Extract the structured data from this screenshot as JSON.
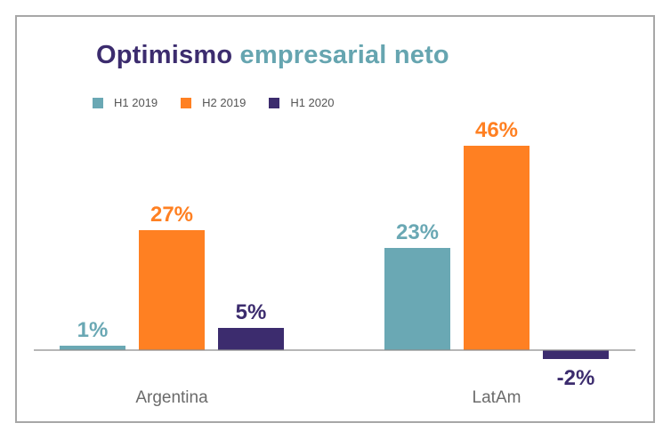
{
  "chart_data": {
    "type": "bar",
    "title": "Optimismo empresarial neto",
    "title_part1": "Optimismo",
    "title_part2": "empresarial neto",
    "xlabel": "",
    "ylabel": "",
    "categories": [
      "Argentina",
      "LatAm"
    ],
    "series": [
      {
        "name": "H1 2019",
        "color": "#6aa8b4",
        "values": [
          1,
          23
        ],
        "labels": [
          "1%",
          "23%"
        ]
      },
      {
        "name": "H2 2019",
        "color": "#ff8022",
        "values": [
          27,
          46
        ],
        "labels": [
          "27%",
          "46%"
        ]
      },
      {
        "name": "H1 2020",
        "color": "#3c2c6e",
        "values": [
          5,
          -2
        ],
        "labels": [
          "5%",
          "-2%"
        ]
      }
    ],
    "ylim": [
      -2,
      46
    ],
    "grid": false,
    "legend_position": "top-left"
  }
}
